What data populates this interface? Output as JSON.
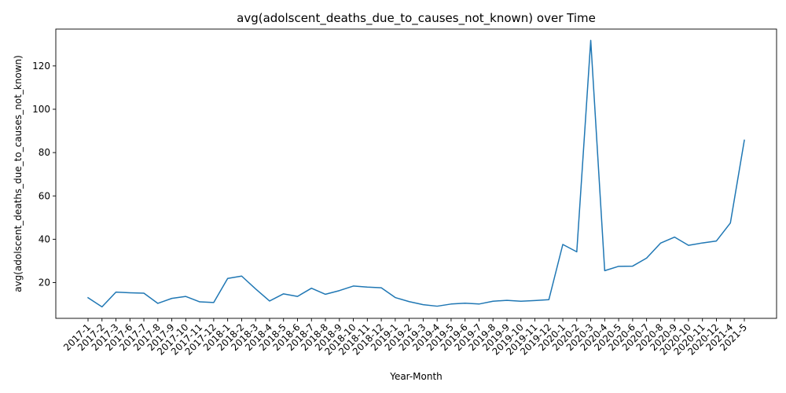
{
  "chart_data": {
    "type": "line",
    "title": "avg(adolscent_deaths_due_to_causes_not_known) over Time",
    "xlabel": "Year-Month",
    "ylabel": "avg(adolscent_deaths_due_to_causes_not_known)",
    "ylim": [
      3.5,
      137
    ],
    "yticks": [
      20,
      40,
      60,
      80,
      100,
      120
    ],
    "grid": false,
    "legend": "none",
    "line_color": "#1f77b4",
    "x": [
      "2017-1",
      "2017-2",
      "2017-3",
      "2017-6",
      "2017-7",
      "2017-8",
      "2017-9",
      "2017-10",
      "2017-11",
      "2017-12",
      "2018-1",
      "2018-2",
      "2018-3",
      "2018-4",
      "2018-5",
      "2018-6",
      "2018-7",
      "2018-8",
      "2018-9",
      "2018-10",
      "2018-11",
      "2018-12",
      "2019-1",
      "2019-2",
      "2019-3",
      "2019-4",
      "2019-5",
      "2019-6",
      "2019-7",
      "2019-8",
      "2019-9",
      "2019-10",
      "2019-11",
      "2019-12",
      "2020-1",
      "2020-2",
      "2020-3",
      "2020-4",
      "2020-5",
      "2020-6",
      "2020-7",
      "2020-8",
      "2020-9",
      "2020-10",
      "2020-11",
      "2020-12",
      "2021-4",
      "2021-5"
    ],
    "values": [
      13.0,
      8.8,
      15.6,
      15.3,
      15.1,
      10.4,
      12.7,
      13.6,
      11.1,
      10.8,
      21.9,
      23.0,
      17.1,
      11.5,
      14.8,
      13.6,
      17.4,
      14.6,
      16.3,
      18.4,
      17.9,
      17.6,
      13.1,
      11.2,
      9.8,
      9.1,
      10.1,
      10.5,
      10.1,
      11.4,
      11.8,
      11.4,
      11.7,
      12.1,
      37.6,
      34.2,
      131.8,
      25.5,
      27.5,
      27.6,
      31.3,
      38.2,
      41.0,
      37.2,
      38.3,
      39.2,
      47.5,
      85.7
    ]
  }
}
